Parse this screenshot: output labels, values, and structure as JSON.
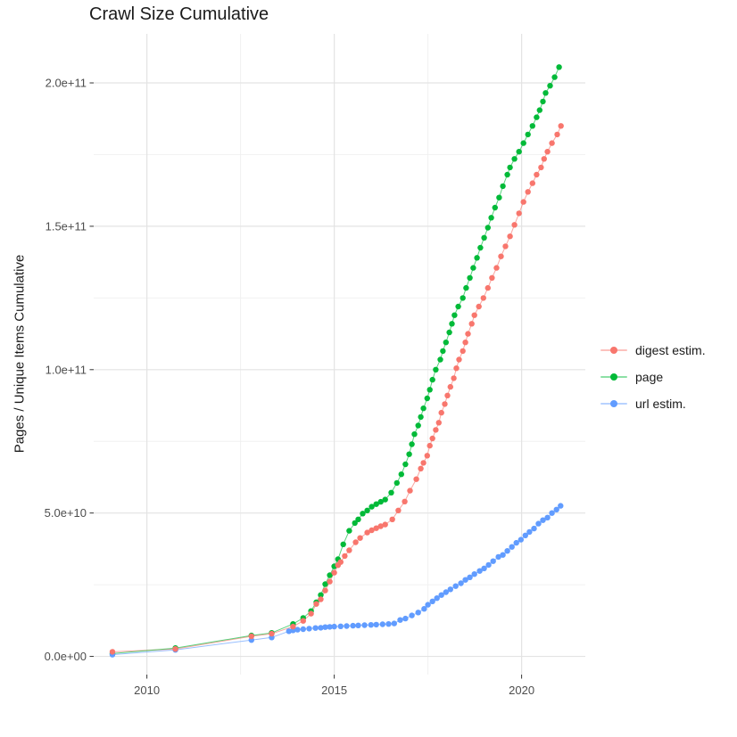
{
  "chart": {
    "title": "Crawl Size Cumulative",
    "ylabel": "Pages / Unique Items Cumulative",
    "xlabel": "",
    "legend": {
      "items": [
        {
          "label": "digest estim.",
          "color": "#F8766D"
        },
        {
          "label": "page",
          "color": "#00BA38"
        },
        {
          "label": "url estim.",
          "color": "#619CFF"
        }
      ]
    }
  },
  "chart_data": {
    "type": "scatter",
    "title": "Crawl Size Cumulative",
    "xlabel": "",
    "ylabel": "Pages / Unique Items Cumulative",
    "grid": true,
    "legend_position": "right",
    "x_unit": "year (decimal)",
    "y_unit": "billions of items (value * 1e9)",
    "x_domain": [
      2008.58,
      2021.7
    ],
    "y_domain_e9": [
      -6.35,
      217.1
    ],
    "x_ticks": {
      "major": [
        2010,
        2015,
        2020
      ],
      "minor": [
        2012.5,
        2017.5
      ],
      "labels": [
        "2010",
        "2015",
        "2020"
      ]
    },
    "y_ticks": {
      "major_e9": [
        0,
        50,
        100,
        150,
        200
      ],
      "minor_e9": [
        25,
        75,
        125,
        175
      ],
      "labels": [
        "0.0e+00",
        "5.0e+10",
        "1.0e+11",
        "1.5e+11",
        "2.0e+11"
      ]
    },
    "colors": {
      "grid_major": "#e3e3e3",
      "grid_minor": "#f0f0f0",
      "tick": "#333333",
      "axis_text": "#4d4d4d"
    },
    "series": [
      {
        "name": "digest estim.",
        "color": "#F8766D",
        "points": [
          [
            2009.08,
            1.6
          ],
          [
            2010.76,
            2.6
          ],
          [
            2012.79,
            7.0
          ],
          [
            2013.33,
            7.9
          ],
          [
            2013.9,
            10.4
          ],
          [
            2014.17,
            12.4
          ],
          [
            2014.38,
            14.9
          ],
          [
            2014.52,
            18.3
          ],
          [
            2014.64,
            19.9
          ],
          [
            2014.76,
            23.0
          ],
          [
            2014.88,
            26.1
          ],
          [
            2015.0,
            29.2
          ],
          [
            2015.1,
            31.8
          ],
          [
            2015.17,
            32.9
          ],
          [
            2015.28,
            35.0
          ],
          [
            2015.4,
            37.0
          ],
          [
            2015.57,
            39.8
          ],
          [
            2015.69,
            41.3
          ],
          [
            2015.88,
            43.2
          ],
          [
            2016.0,
            44.0
          ],
          [
            2016.12,
            44.7
          ],
          [
            2016.24,
            45.4
          ],
          [
            2016.36,
            46.0
          ],
          [
            2016.55,
            47.8
          ],
          [
            2016.71,
            50.9
          ],
          [
            2016.88,
            54.0
          ],
          [
            2017.02,
            57.8
          ],
          [
            2017.19,
            61.8
          ],
          [
            2017.31,
            65.5
          ],
          [
            2017.38,
            67.5
          ],
          [
            2017.48,
            70.0
          ],
          [
            2017.55,
            73.5
          ],
          [
            2017.62,
            76.0
          ],
          [
            2017.71,
            79.0
          ],
          [
            2017.79,
            81.5
          ],
          [
            2017.86,
            85.0
          ],
          [
            2017.95,
            88.0
          ],
          [
            2018.02,
            91.0
          ],
          [
            2018.1,
            94.0
          ],
          [
            2018.19,
            97.0
          ],
          [
            2018.26,
            100.5
          ],
          [
            2018.33,
            103.5
          ],
          [
            2018.43,
            106.5
          ],
          [
            2018.5,
            109.5
          ],
          [
            2018.57,
            112.5
          ],
          [
            2018.67,
            116.0
          ],
          [
            2018.74,
            119.0
          ],
          [
            2018.86,
            122.0
          ],
          [
            2018.98,
            125.0
          ],
          [
            2019.1,
            128.5
          ],
          [
            2019.21,
            132.0
          ],
          [
            2019.33,
            135.5
          ],
          [
            2019.45,
            139.5
          ],
          [
            2019.57,
            143.0
          ],
          [
            2019.69,
            146.5
          ],
          [
            2019.81,
            150.5
          ],
          [
            2019.93,
            154.5
          ],
          [
            2020.05,
            158.5
          ],
          [
            2020.17,
            162.0
          ],
          [
            2020.29,
            165.0
          ],
          [
            2020.4,
            168.0
          ],
          [
            2020.52,
            170.5
          ],
          [
            2020.6,
            173.5
          ],
          [
            2020.69,
            176.0
          ],
          [
            2020.81,
            179.0
          ],
          [
            2020.95,
            182.0
          ],
          [
            2021.05,
            185.0
          ]
        ]
      },
      {
        "name": "page",
        "color": "#00BA38",
        "points": [
          [
            2009.08,
            1.0
          ],
          [
            2010.76,
            2.9
          ],
          [
            2012.79,
            7.3
          ],
          [
            2013.33,
            8.2
          ],
          [
            2013.9,
            11.3
          ],
          [
            2014.17,
            13.4
          ],
          [
            2014.38,
            15.8
          ],
          [
            2014.52,
            18.9
          ],
          [
            2014.64,
            21.4
          ],
          [
            2014.76,
            25.2
          ],
          [
            2014.88,
            28.3
          ],
          [
            2015.0,
            31.4
          ],
          [
            2015.1,
            33.9
          ],
          [
            2015.24,
            39.1
          ],
          [
            2015.4,
            43.8
          ],
          [
            2015.55,
            46.5
          ],
          [
            2015.64,
            47.8
          ],
          [
            2015.76,
            49.8
          ],
          [
            2015.88,
            50.9
          ],
          [
            2016.0,
            52.2
          ],
          [
            2016.12,
            53.1
          ],
          [
            2016.24,
            53.9
          ],
          [
            2016.36,
            54.7
          ],
          [
            2016.52,
            57.1
          ],
          [
            2016.67,
            60.5
          ],
          [
            2016.79,
            63.5
          ],
          [
            2016.9,
            67.0
          ],
          [
            2017.0,
            70.5
          ],
          [
            2017.07,
            74.0
          ],
          [
            2017.14,
            77.5
          ],
          [
            2017.24,
            80.5
          ],
          [
            2017.31,
            83.5
          ],
          [
            2017.38,
            86.5
          ],
          [
            2017.48,
            90.0
          ],
          [
            2017.55,
            93.0
          ],
          [
            2017.62,
            96.5
          ],
          [
            2017.71,
            100.0
          ],
          [
            2017.83,
            103.5
          ],
          [
            2017.9,
            106.5
          ],
          [
            2017.98,
            109.5
          ],
          [
            2018.07,
            113.0
          ],
          [
            2018.14,
            116.0
          ],
          [
            2018.21,
            119.0
          ],
          [
            2018.31,
            122.0
          ],
          [
            2018.43,
            125.0
          ],
          [
            2018.52,
            128.5
          ],
          [
            2018.62,
            132.0
          ],
          [
            2018.71,
            135.5
          ],
          [
            2018.81,
            139.0
          ],
          [
            2018.9,
            142.5
          ],
          [
            2019.0,
            146.0
          ],
          [
            2019.1,
            149.5
          ],
          [
            2019.19,
            153.0
          ],
          [
            2019.29,
            156.5
          ],
          [
            2019.4,
            160.0
          ],
          [
            2019.5,
            164.0
          ],
          [
            2019.62,
            168.0
          ],
          [
            2019.69,
            170.5
          ],
          [
            2019.81,
            173.5
          ],
          [
            2019.93,
            176.0
          ],
          [
            2020.05,
            179.0
          ],
          [
            2020.17,
            182.0
          ],
          [
            2020.29,
            185.0
          ],
          [
            2020.4,
            188.0
          ],
          [
            2020.48,
            190.5
          ],
          [
            2020.57,
            193.5
          ],
          [
            2020.64,
            196.5
          ],
          [
            2020.76,
            199.0
          ],
          [
            2020.88,
            202.0
          ],
          [
            2021.0,
            205.5
          ]
        ]
      },
      {
        "name": "url estim.",
        "color": "#619CFF",
        "points": [
          [
            2009.08,
            0.6
          ],
          [
            2010.76,
            2.3
          ],
          [
            2012.79,
            5.7
          ],
          [
            2013.33,
            6.6
          ],
          [
            2013.79,
            8.8
          ],
          [
            2013.9,
            9.1
          ],
          [
            2014.02,
            9.3
          ],
          [
            2014.17,
            9.5
          ],
          [
            2014.33,
            9.7
          ],
          [
            2014.5,
            9.9
          ],
          [
            2014.64,
            10.0
          ],
          [
            2014.76,
            10.2
          ],
          [
            2014.88,
            10.3
          ],
          [
            2015.0,
            10.4
          ],
          [
            2015.17,
            10.5
          ],
          [
            2015.33,
            10.6
          ],
          [
            2015.5,
            10.7
          ],
          [
            2015.64,
            10.8
          ],
          [
            2015.81,
            10.9
          ],
          [
            2015.98,
            11.0
          ],
          [
            2016.12,
            11.1
          ],
          [
            2016.29,
            11.2
          ],
          [
            2016.45,
            11.3
          ],
          [
            2016.6,
            11.5
          ],
          [
            2016.76,
            12.7
          ],
          [
            2016.9,
            13.2
          ],
          [
            2017.07,
            14.3
          ],
          [
            2017.24,
            15.3
          ],
          [
            2017.4,
            16.6
          ],
          [
            2017.5,
            18.0
          ],
          [
            2017.62,
            19.2
          ],
          [
            2017.74,
            20.3
          ],
          [
            2017.86,
            21.4
          ],
          [
            2017.98,
            22.4
          ],
          [
            2018.1,
            23.4
          ],
          [
            2018.24,
            24.5
          ],
          [
            2018.38,
            25.5
          ],
          [
            2018.5,
            26.7
          ],
          [
            2018.62,
            27.6
          ],
          [
            2018.74,
            28.7
          ],
          [
            2018.88,
            29.8
          ],
          [
            2019.0,
            30.7
          ],
          [
            2019.12,
            31.9
          ],
          [
            2019.24,
            33.2
          ],
          [
            2019.38,
            34.7
          ],
          [
            2019.5,
            35.4
          ],
          [
            2019.62,
            36.8
          ],
          [
            2019.74,
            38.2
          ],
          [
            2019.86,
            39.6
          ],
          [
            2019.98,
            40.7
          ],
          [
            2020.1,
            42.2
          ],
          [
            2020.21,
            43.4
          ],
          [
            2020.33,
            44.6
          ],
          [
            2020.45,
            46.3
          ],
          [
            2020.57,
            47.5
          ],
          [
            2020.69,
            48.4
          ],
          [
            2020.81,
            50.0
          ],
          [
            2020.93,
            51.2
          ],
          [
            2021.04,
            52.5
          ]
        ]
      }
    ]
  }
}
